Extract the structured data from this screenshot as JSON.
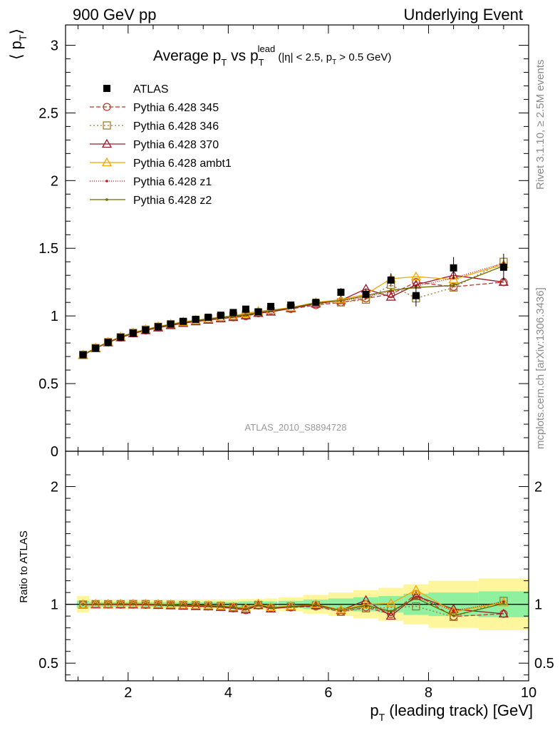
{
  "header": {
    "left": "900 GeV pp",
    "right": "Underlying Event"
  },
  "plot_title": {
    "main": "Average p",
    "main_sub": "T",
    "vs": " vs p",
    "vs_sub": "T",
    "vs_sup": "lead",
    "cuts": " (|η| < 2.5, p",
    "cuts_sub": "T",
    "cuts_tail": " > 0.5 GeV)"
  },
  "ylabel_main": {
    "open": "⟨ p",
    "sub": "T",
    "close": "⟩"
  },
  "ylabel_ratio": "Ratio to ATLAS",
  "xlabel": {
    "p": "p",
    "sub": "T",
    "rest": " (leading track) [GeV]"
  },
  "side_text_top": "Rivet 3.1.10, ≥ 2.5M events",
  "side_text_bottom": "mcplots.cern.ch [arXiv:1306.3436]",
  "analysis_id": "ATLAS_2010_S8894728",
  "chart_data": {
    "type": "line",
    "title": "Average pT vs pT lead (|η| < 2.5, pT > 0.5 GeV)",
    "xlabel": "pT (leading track) [GeV]",
    "ylabel": "⟨ pT ⟩",
    "xlim": [
      0.75,
      10.0
    ],
    "ylim": [
      0,
      3.15
    ],
    "ratio_ylim": [
      0.35,
      2.3
    ],
    "x_ticks": [
      "2",
      "4",
      "6",
      "8",
      "10"
    ],
    "y_ticks_main": [
      "0",
      "0.5",
      "1",
      "1.5",
      "2",
      "2.5",
      "3"
    ],
    "y_ticks_ratio": [
      "0.5",
      "1",
      "2"
    ],
    "x": [
      1.1,
      1.35,
      1.6,
      1.85,
      2.1,
      2.35,
      2.6,
      2.85,
      3.1,
      3.35,
      3.6,
      3.85,
      4.1,
      4.35,
      4.6,
      4.85,
      5.25,
      5.75,
      6.25,
      6.75,
      7.25,
      7.75,
      8.5,
      9.5
    ],
    "xerr": [
      0.125,
      0.125,
      0.125,
      0.125,
      0.125,
      0.125,
      0.125,
      0.125,
      0.125,
      0.125,
      0.125,
      0.125,
      0.125,
      0.125,
      0.125,
      0.125,
      0.25,
      0.25,
      0.25,
      0.25,
      0.25,
      0.25,
      0.5,
      0.5
    ],
    "reference": {
      "name": "ATLAS",
      "values": [
        0.713,
        0.762,
        0.805,
        0.842,
        0.873,
        0.897,
        0.92,
        0.94,
        0.96,
        0.975,
        0.99,
        1.005,
        1.025,
        1.05,
        1.03,
        1.07,
        1.08,
        1.1,
        1.175,
        1.16,
        1.265,
        1.15,
        1.355,
        1.36
      ],
      "err_stat": [
        0.01,
        0.01,
        0.01,
        0.01,
        0.01,
        0.01,
        0.01,
        0.01,
        0.01,
        0.01,
        0.01,
        0.01,
        0.01,
        0.015,
        0.015,
        0.015,
        0.02,
        0.02,
        0.03,
        0.04,
        0.05,
        0.08,
        0.08,
        0.1
      ],
      "ratio_band_inner": [
        0.03,
        0.02,
        0.02,
        0.02,
        0.02,
        0.02,
        0.02,
        0.02,
        0.02,
        0.02,
        0.02,
        0.02,
        0.02,
        0.025,
        0.025,
        0.025,
        0.03,
        0.04,
        0.05,
        0.06,
        0.07,
        0.09,
        0.1,
        0.11
      ],
      "ratio_band_outer": [
        0.07,
        0.04,
        0.04,
        0.04,
        0.04,
        0.04,
        0.04,
        0.04,
        0.04,
        0.04,
        0.04,
        0.04,
        0.04,
        0.045,
        0.045,
        0.05,
        0.06,
        0.08,
        0.1,
        0.12,
        0.14,
        0.17,
        0.2,
        0.22
      ]
    },
    "series": [
      {
        "name": "Pythia 6.428 345",
        "color": "#c0392b",
        "dash": "6,3",
        "marker": "circle",
        "values": [
          0.712,
          0.762,
          0.804,
          0.84,
          0.871,
          0.893,
          0.915,
          0.934,
          0.95,
          0.962,
          0.972,
          0.983,
          0.99,
          0.998,
          1.02,
          1.04,
          1.052,
          1.08,
          1.1,
          1.13,
          1.16,
          1.25,
          1.215,
          1.25
        ]
      },
      {
        "name": "Pythia 6.428 346",
        "color": "#a0782a",
        "dash": "2,3",
        "marker": "square",
        "values": [
          0.712,
          0.763,
          0.806,
          0.843,
          0.875,
          0.899,
          0.92,
          0.938,
          0.955,
          0.968,
          0.98,
          0.992,
          1.0,
          1.01,
          1.025,
          1.035,
          1.06,
          1.09,
          1.1,
          1.12,
          1.23,
          1.13,
          1.21,
          1.4
        ]
      },
      {
        "name": "Pythia 6.428 370",
        "color": "#9b1a2a",
        "dash": "",
        "marker": "triangle",
        "values": [
          0.71,
          0.76,
          0.803,
          0.84,
          0.87,
          0.893,
          0.913,
          0.93,
          0.946,
          0.958,
          0.97,
          0.98,
          0.99,
          1.002,
          1.02,
          1.03,
          1.055,
          1.09,
          1.115,
          1.2,
          1.14,
          1.23,
          1.3,
          1.25
        ]
      },
      {
        "name": "Pythia 6.428 ambt1",
        "color": "#f5a400",
        "dash": "",
        "marker": "triangle",
        "values": [
          0.712,
          0.765,
          0.808,
          0.846,
          0.877,
          0.9,
          0.922,
          0.94,
          0.955,
          0.968,
          0.98,
          0.991,
          1.003,
          1.017,
          1.035,
          1.043,
          1.062,
          1.1,
          1.12,
          1.16,
          1.275,
          1.29,
          1.27,
          1.38
        ]
      },
      {
        "name": "Pythia 6.428 z1",
        "color": "#cc1111",
        "dash": "1,2",
        "marker": "dot",
        "values": [
          0.712,
          0.763,
          0.806,
          0.843,
          0.874,
          0.897,
          0.918,
          0.936,
          0.952,
          0.965,
          0.977,
          0.988,
          0.998,
          1.008,
          1.025,
          1.038,
          1.058,
          1.095,
          1.112,
          1.14,
          1.18,
          1.22,
          1.28,
          1.39
        ]
      },
      {
        "name": "Pythia 6.428 z2",
        "color": "#6b6b00",
        "dash": "",
        "marker": "dot",
        "values": [
          0.712,
          0.763,
          0.806,
          0.844,
          0.875,
          0.898,
          0.919,
          0.937,
          0.953,
          0.966,
          0.978,
          0.989,
          0.999,
          1.009,
          1.026,
          1.039,
          1.059,
          1.096,
          1.113,
          1.15,
          1.19,
          1.21,
          1.225,
          1.37
        ]
      }
    ],
    "legend_placement": "top-left",
    "grid": false
  }
}
